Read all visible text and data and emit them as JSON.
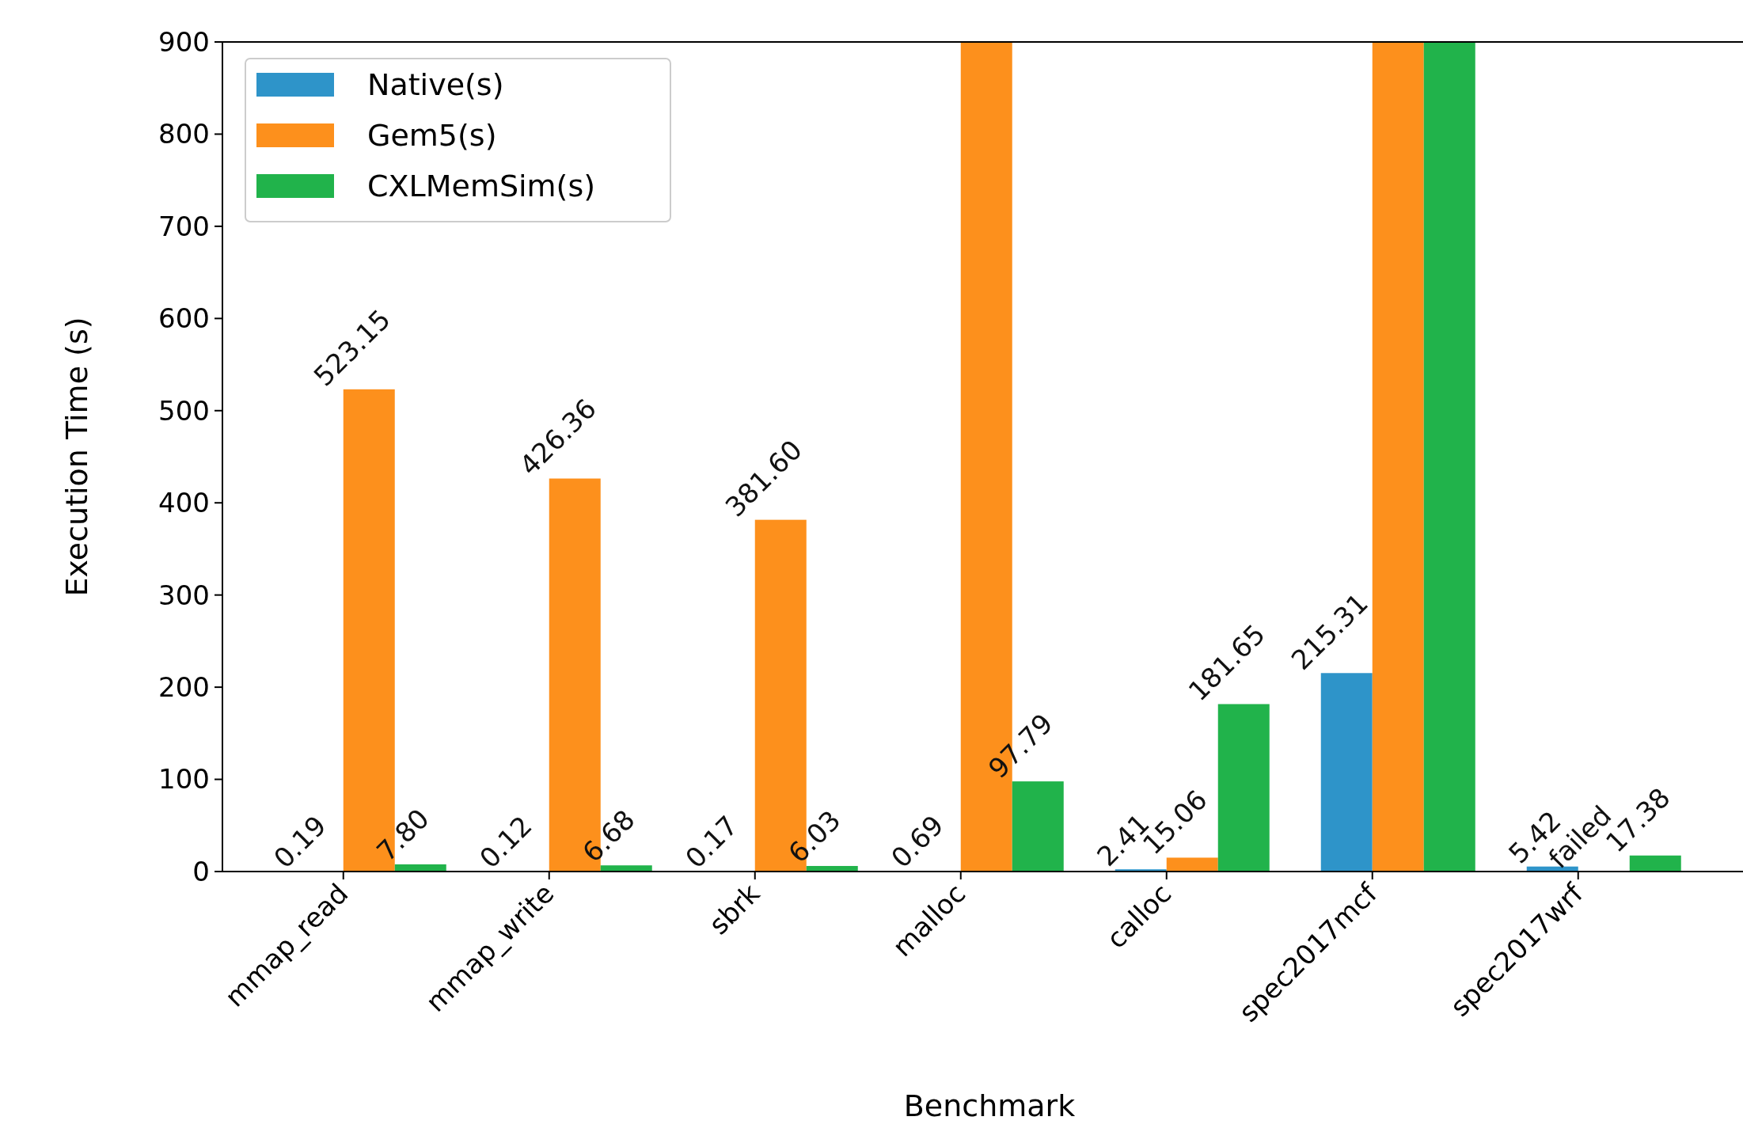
{
  "chart_data": {
    "type": "bar",
    "xlabel": "Benchmark",
    "ylabel": "Execution Time (s)",
    "categories": [
      "mmap_read",
      "mmap_write",
      "sbrk",
      "malloc",
      "calloc",
      "spec2017mcf",
      "spec2017wrf"
    ],
    "series": [
      {
        "name": "Native(s)",
        "color": "#2e94c9",
        "values": [
          0.19,
          0.12,
          0.17,
          0.69,
          2.41,
          215.31,
          5.42
        ],
        "value_labels": [
          "0.19",
          "0.12",
          "0.17",
          "0.69",
          "2.41",
          "215.31",
          "5.42"
        ]
      },
      {
        "name": "Gem5(s)",
        "color": "#fd901c",
        "values": [
          523.15,
          426.36,
          381.6,
          900,
          15.06,
          900,
          null
        ],
        "value_labels": [
          "523.15",
          "426.36",
          "381.60",
          null,
          "15.06",
          null,
          "failed"
        ]
      },
      {
        "name": "CXLMemSim(s)",
        "color": "#21b34b",
        "values": [
          7.8,
          6.68,
          6.03,
          97.79,
          181.65,
          900,
          17.38
        ],
        "value_labels": [
          "7.80",
          "6.68",
          "6.03",
          "97.79",
          "181.65",
          null,
          "17.38"
        ]
      }
    ],
    "ylim": [
      0,
      900
    ],
    "yticks": [
      0,
      100,
      200,
      300,
      400,
      500,
      600,
      700,
      800,
      900
    ],
    "grid": false,
    "legend": "top left"
  }
}
